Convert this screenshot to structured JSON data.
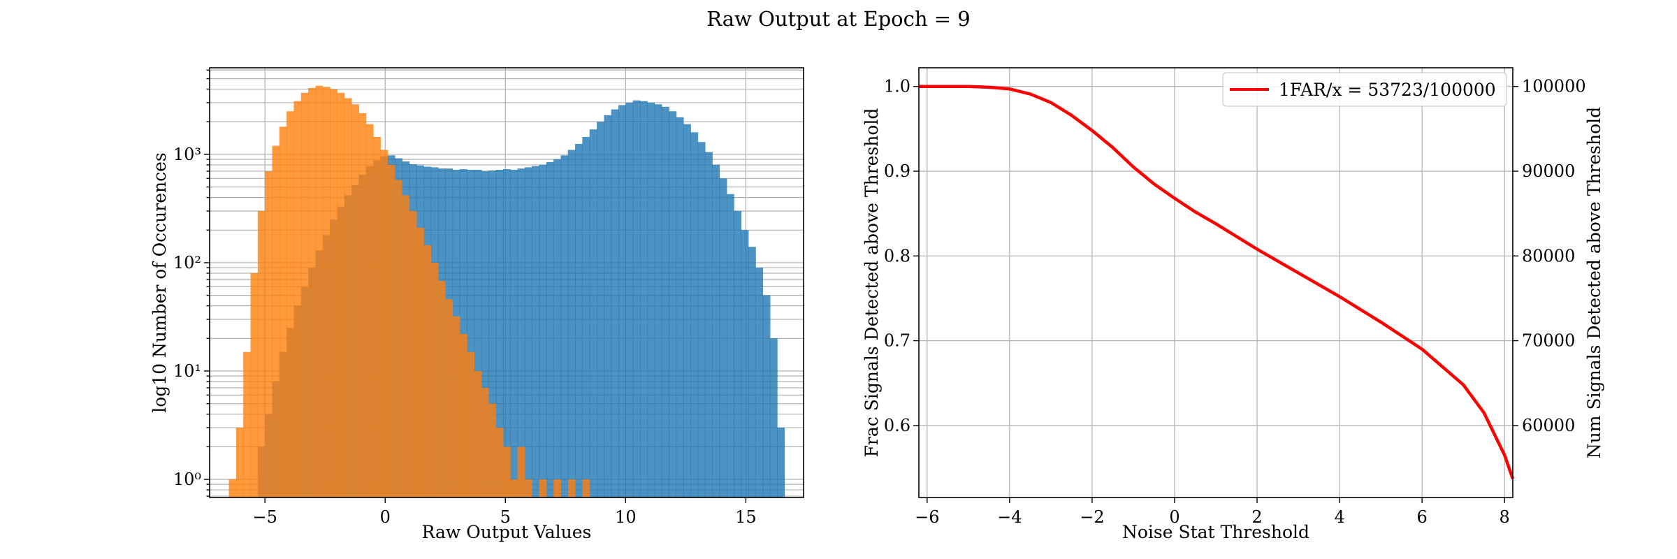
{
  "figure": {
    "title": "Raw Output at Epoch = 9"
  },
  "chart_data": [
    {
      "type": "bar",
      "subtype": "overlapping-histogram",
      "title": "",
      "xlabel": "Raw Output Values",
      "ylabel": "log10 Number of Occurences",
      "yscale": "log",
      "xlim": [
        -7.3,
        17.4
      ],
      "ylim": [
        0.68,
        6300
      ],
      "grid": true,
      "xticks": [
        -5,
        0,
        5,
        10,
        15
      ],
      "yticks": [
        1,
        10,
        100,
        1000
      ],
      "yticklabels": [
        "10⁰",
        "10¹",
        "10²",
        "10³"
      ],
      "series": [
        {
          "name": "",
          "color": "#1f77b4",
          "alpha": 0.8,
          "bins": [
            [
              -5.3,
              2
            ],
            [
              -5.0,
              4
            ],
            [
              -4.7,
              8
            ],
            [
              -4.4,
              15
            ],
            [
              -4.1,
              25
            ],
            [
              -3.8,
              40
            ],
            [
              -3.5,
              60
            ],
            [
              -3.2,
              90
            ],
            [
              -2.9,
              130
            ],
            [
              -2.6,
              180
            ],
            [
              -2.3,
              250
            ],
            [
              -2.0,
              330
            ],
            [
              -1.7,
              420
            ],
            [
              -1.4,
              520
            ],
            [
              -1.1,
              650
            ],
            [
              -0.8,
              780
            ],
            [
              -0.5,
              880
            ],
            [
              -0.2,
              960
            ],
            [
              0.1,
              980
            ],
            [
              0.4,
              920
            ],
            [
              0.7,
              860
            ],
            [
              1.0,
              810
            ],
            [
              1.3,
              790
            ],
            [
              1.6,
              770
            ],
            [
              1.9,
              760
            ],
            [
              2.2,
              740
            ],
            [
              2.5,
              740
            ],
            [
              2.8,
              720
            ],
            [
              3.1,
              730
            ],
            [
              3.4,
              720
            ],
            [
              3.7,
              720
            ],
            [
              4.0,
              700
            ],
            [
              4.3,
              710
            ],
            [
              4.6,
              720
            ],
            [
              4.9,
              730
            ],
            [
              5.2,
              720
            ],
            [
              5.5,
              740
            ],
            [
              5.8,
              760
            ],
            [
              6.1,
              780
            ],
            [
              6.4,
              800
            ],
            [
              6.7,
              850
            ],
            [
              7.0,
              900
            ],
            [
              7.3,
              980
            ],
            [
              7.6,
              1100
            ],
            [
              7.9,
              1250
            ],
            [
              8.2,
              1450
            ],
            [
              8.5,
              1700
            ],
            [
              8.8,
              2000
            ],
            [
              9.1,
              2300
            ],
            [
              9.4,
              2600
            ],
            [
              9.7,
              2850
            ],
            [
              10.0,
              3000
            ],
            [
              10.3,
              3150
            ],
            [
              10.6,
              3100
            ],
            [
              10.9,
              3000
            ],
            [
              11.2,
              2900
            ],
            [
              11.5,
              2750
            ],
            [
              11.8,
              2500
            ],
            [
              12.1,
              2200
            ],
            [
              12.4,
              1900
            ],
            [
              12.7,
              1600
            ],
            [
              13.0,
              1300
            ],
            [
              13.3,
              1050
            ],
            [
              13.6,
              800
            ],
            [
              13.9,
              600
            ],
            [
              14.2,
              430
            ],
            [
              14.5,
              300
            ],
            [
              14.8,
              200
            ],
            [
              15.1,
              140
            ],
            [
              15.4,
              90
            ],
            [
              15.7,
              50
            ],
            [
              16.0,
              20
            ],
            [
              16.3,
              3
            ]
          ]
        },
        {
          "name": "",
          "color": "#ff7f0e",
          "alpha": 0.8,
          "bins": [
            [
              -6.5,
              1
            ],
            [
              -6.2,
              3
            ],
            [
              -5.9,
              15
            ],
            [
              -5.6,
              80
            ],
            [
              -5.3,
              300
            ],
            [
              -5.0,
              700
            ],
            [
              -4.7,
              1200
            ],
            [
              -4.4,
              1800
            ],
            [
              -4.1,
              2500
            ],
            [
              -3.8,
              3100
            ],
            [
              -3.5,
              3700
            ],
            [
              -3.2,
              4100
            ],
            [
              -2.9,
              4300
            ],
            [
              -2.6,
              4200
            ],
            [
              -2.3,
              4000
            ],
            [
              -2.0,
              3700
            ],
            [
              -1.7,
              3300
            ],
            [
              -1.4,
              2900
            ],
            [
              -1.1,
              2400
            ],
            [
              -0.8,
              1900
            ],
            [
              -0.5,
              1450
            ],
            [
              -0.2,
              1100
            ],
            [
              0.1,
              800
            ],
            [
              0.4,
              580
            ],
            [
              0.7,
              420
            ],
            [
              1.0,
              300
            ],
            [
              1.3,
              210
            ],
            [
              1.6,
              145
            ],
            [
              1.9,
              100
            ],
            [
              2.2,
              68
            ],
            [
              2.5,
              46
            ],
            [
              2.8,
              32
            ],
            [
              3.1,
              22
            ],
            [
              3.4,
              15
            ],
            [
              3.7,
              10
            ],
            [
              4.0,
              7
            ],
            [
              4.3,
              5
            ],
            [
              4.6,
              3
            ],
            [
              4.9,
              2
            ],
            [
              5.2,
              1
            ],
            [
              5.5,
              2
            ],
            [
              5.8,
              1
            ],
            [
              6.4,
              1
            ],
            [
              7.0,
              1
            ],
            [
              7.6,
              1
            ],
            [
              8.2,
              1
            ]
          ]
        }
      ]
    },
    {
      "type": "line",
      "title": "",
      "xlabel": "Noise Stat Threshold",
      "ylabel": "Frac Signals Detected above Threshold",
      "ylabel_right": "Num Signals Detected above Threshold",
      "xlim": [
        -6.2,
        8.2
      ],
      "ylim": [
        0.515,
        1.022
      ],
      "ylim_right": [
        51500,
        102200
      ],
      "grid": true,
      "legend_position": "top-right",
      "xticks": [
        -6,
        -4,
        -2,
        0,
        2,
        4,
        6,
        8
      ],
      "xticklabels": [
        "−6",
        "−4",
        "−2",
        "0",
        "2",
        "4",
        "6",
        "8"
      ],
      "yticks": [
        0.6,
        0.7,
        0.8,
        0.9,
        1.0
      ],
      "yticklabels": [
        "0.6",
        "0.7",
        "0.8",
        "0.9",
        "1.0"
      ],
      "yticks_right": [
        60000,
        70000,
        80000,
        90000,
        100000
      ],
      "yticklabels_right": [
        "60000",
        "70000",
        "80000",
        "90000",
        "100000"
      ],
      "series": [
        {
          "name": "1FAR/x = 53723/100000",
          "color": "#ff0000",
          "x": [
            -6.2,
            -5.5,
            -5.0,
            -4.5,
            -4.0,
            -3.5,
            -3.0,
            -2.5,
            -2.0,
            -1.5,
            -1.0,
            -0.5,
            0.0,
            0.5,
            1.0,
            2.0,
            3.0,
            4.0,
            5.0,
            6.0,
            7.0,
            7.5,
            8.0,
            8.2
          ],
          "y": [
            1.0,
            1.0,
            1.0,
            0.999,
            0.997,
            0.991,
            0.981,
            0.966,
            0.948,
            0.928,
            0.905,
            0.885,
            0.868,
            0.852,
            0.838,
            0.808,
            0.78,
            0.752,
            0.722,
            0.69,
            0.648,
            0.615,
            0.565,
            0.537
          ]
        }
      ]
    }
  ]
}
